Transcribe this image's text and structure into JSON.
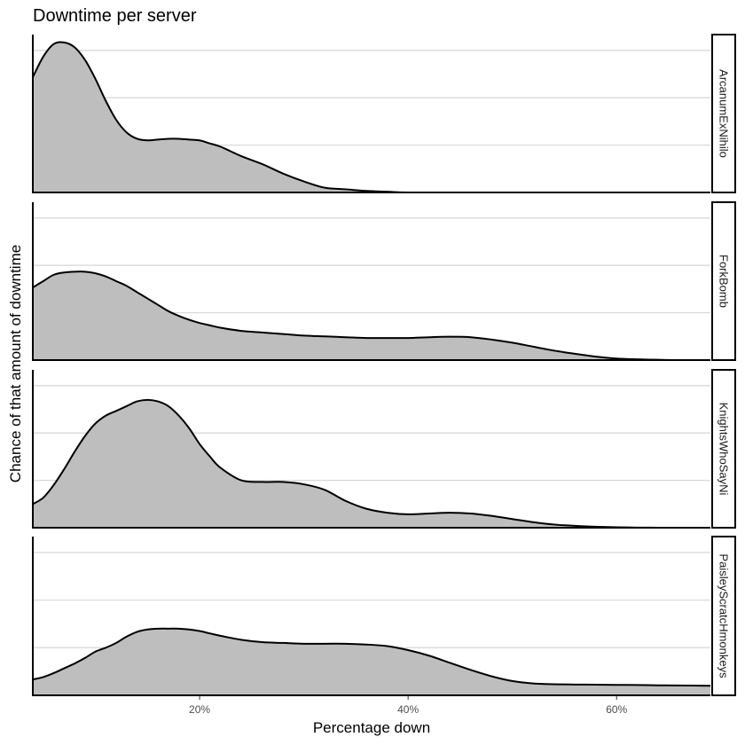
{
  "chart_data": {
    "type": "area",
    "title": "Downtime per server",
    "xlabel": "Percentage down",
    "ylabel": "Chance of that amount of downtime",
    "xlim": [
      4,
      69
    ],
    "x_ticks": [
      20,
      40,
      60
    ],
    "x_tick_labels": [
      "20%",
      "40%",
      "60%"
    ],
    "ylim": [
      0,
      1
    ],
    "y_gridlines": [
      0.3,
      0.6,
      0.9
    ],
    "fill_color": "#bebebe",
    "line_color": "#000000",
    "facets": [
      {
        "name": "ArcanumExNihilo",
        "x": [
          4,
          5,
          6,
          7,
          8,
          9,
          10,
          11,
          12,
          13,
          14,
          15,
          16,
          17,
          18,
          19,
          20,
          21,
          22,
          24,
          26,
          28,
          30,
          32,
          34,
          36,
          38,
          40,
          44,
          50,
          60,
          69
        ],
        "y": [
          0.73,
          0.86,
          0.94,
          0.95,
          0.92,
          0.84,
          0.72,
          0.58,
          0.46,
          0.38,
          0.34,
          0.33,
          0.335,
          0.34,
          0.34,
          0.335,
          0.33,
          0.31,
          0.29,
          0.23,
          0.18,
          0.12,
          0.07,
          0.03,
          0.02,
          0.01,
          0.005,
          0.0,
          0.0,
          0.0,
          0.0,
          0.0
        ]
      },
      {
        "name": "ForkBomb",
        "x": [
          4,
          5,
          6,
          7,
          8,
          9,
          10,
          11,
          12,
          13,
          14,
          15,
          16,
          17,
          18,
          19,
          20,
          21,
          22,
          24,
          26,
          28,
          30,
          32,
          34,
          36,
          38,
          40,
          42,
          44,
          46,
          48,
          50,
          52,
          54,
          56,
          58,
          60,
          62,
          64,
          66,
          69
        ],
        "y": [
          0.46,
          0.5,
          0.54,
          0.555,
          0.56,
          0.56,
          0.55,
          0.53,
          0.5,
          0.47,
          0.43,
          0.39,
          0.35,
          0.31,
          0.28,
          0.255,
          0.235,
          0.22,
          0.205,
          0.185,
          0.175,
          0.165,
          0.155,
          0.15,
          0.145,
          0.14,
          0.14,
          0.14,
          0.145,
          0.148,
          0.145,
          0.13,
          0.11,
          0.085,
          0.06,
          0.04,
          0.022,
          0.01,
          0.005,
          0.002,
          0.0,
          0.0
        ]
      },
      {
        "name": "KnightsWhoSayNi",
        "x": [
          4,
          5,
          6,
          7,
          8,
          9,
          10,
          11,
          12,
          13,
          14,
          15,
          16,
          17,
          18,
          19,
          20,
          21,
          22,
          24,
          26,
          28,
          30,
          32,
          34,
          36,
          38,
          40,
          42,
          44,
          46,
          48,
          50,
          52,
          54,
          56,
          58,
          60,
          62,
          64,
          66,
          69
        ],
        "y": [
          0.15,
          0.19,
          0.27,
          0.37,
          0.48,
          0.58,
          0.66,
          0.71,
          0.74,
          0.77,
          0.8,
          0.81,
          0.8,
          0.77,
          0.71,
          0.63,
          0.53,
          0.45,
          0.38,
          0.3,
          0.29,
          0.29,
          0.275,
          0.24,
          0.17,
          0.12,
          0.095,
          0.085,
          0.09,
          0.095,
          0.09,
          0.075,
          0.055,
          0.035,
          0.02,
          0.012,
          0.006,
          0.003,
          0.001,
          0.0,
          0.0,
          0.0
        ]
      },
      {
        "name": "PaisleyScratcHmonkeys",
        "x": [
          4,
          5,
          6,
          7,
          8,
          9,
          10,
          11,
          12,
          13,
          14,
          15,
          16,
          17,
          18,
          19,
          20,
          21,
          22,
          24,
          26,
          28,
          30,
          32,
          34,
          36,
          38,
          40,
          42,
          44,
          46,
          48,
          50,
          52,
          54,
          56,
          58,
          60,
          62,
          64,
          66,
          69
        ],
        "y": [
          0.1,
          0.115,
          0.14,
          0.17,
          0.2,
          0.235,
          0.275,
          0.3,
          0.33,
          0.37,
          0.4,
          0.415,
          0.42,
          0.42,
          0.42,
          0.415,
          0.405,
          0.39,
          0.375,
          0.35,
          0.335,
          0.33,
          0.325,
          0.325,
          0.325,
          0.32,
          0.31,
          0.285,
          0.25,
          0.205,
          0.16,
          0.12,
          0.09,
          0.075,
          0.07,
          0.068,
          0.067,
          0.066,
          0.065,
          0.063,
          0.062,
          0.06
        ]
      }
    ]
  }
}
